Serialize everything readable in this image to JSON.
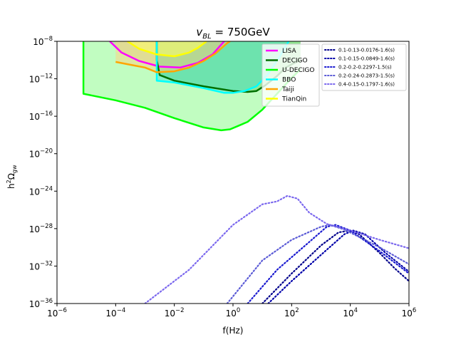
{
  "chart_data": {
    "type": "line",
    "title": "v_BL = 750GeV",
    "title_parts": {
      "symbol": "v",
      "subscript": "BL",
      "rest": " = 750GeV"
    },
    "xlabel": "f(Hz)",
    "ylabel": "h²Ω_gw",
    "ylabel_parts": {
      "h": "h",
      "h_sup": "2",
      "omega": "Ω",
      "omega_sub": "gw"
    },
    "x_scale": "log",
    "y_scale": "log",
    "xlim_log10": [
      -6,
      6
    ],
    "ylim_log10": [
      -36,
      -8
    ],
    "x_ticks": [
      {
        "base": "10",
        "exp": "−6",
        "v": -6
      },
      {
        "base": "10",
        "exp": "−4",
        "v": -4
      },
      {
        "base": "10",
        "exp": "−2",
        "v": -2
      },
      {
        "base": "10",
        "exp": "0",
        "v": 0
      },
      {
        "base": "10",
        "exp": "2",
        "v": 2
      },
      {
        "base": "10",
        "exp": "4",
        "v": 4
      },
      {
        "base": "10",
        "exp": "6",
        "v": 6
      }
    ],
    "y_ticks": [
      {
        "base": "10",
        "exp": "−8",
        "v": -8
      },
      {
        "base": "10",
        "exp": "−12",
        "v": -12
      },
      {
        "base": "10",
        "exp": "−16",
        "v": -16
      },
      {
        "base": "10",
        "exp": "−20",
        "v": -20
      },
      {
        "base": "10",
        "exp": "−24",
        "v": -24
      },
      {
        "base": "10",
        "exp": "−28",
        "v": -28
      },
      {
        "base": "10",
        "exp": "−32",
        "v": -32
      },
      {
        "base": "10",
        "exp": "−36",
        "v": -36
      }
    ],
    "sensitivity_curves": [
      {
        "name": "LISA",
        "color": "#ff00ff",
        "fill": "#ff8080",
        "fill_opacity": 0.45,
        "points": [
          [
            -4.2,
            -8
          ],
          [
            -3.8,
            -9.2
          ],
          [
            -3.2,
            -10.1
          ],
          [
            -2.5,
            -10.7
          ],
          [
            -1.8,
            -10.8
          ],
          [
            -1.2,
            -10.3
          ],
          [
            -0.7,
            -9.4
          ],
          [
            -0.3,
            -8
          ]
        ]
      },
      {
        "name": "DECIGO",
        "color": "#007000",
        "fill": "#008000",
        "fill_opacity": 0.45,
        "points": [
          [
            -2.6,
            -8
          ],
          [
            -2.6,
            -10
          ],
          [
            -2.5,
            -11.6
          ],
          [
            -2,
            -12.2
          ],
          [
            -1,
            -12.8
          ],
          [
            0,
            -13.3
          ],
          [
            0.5,
            -13.4
          ],
          [
            0.8,
            -13.3
          ],
          [
            1.1,
            -12.7
          ],
          [
            1.5,
            -11.7
          ],
          [
            1.8,
            -10.8
          ],
          [
            2.1,
            -10.3
          ],
          [
            2.3,
            -10
          ]
        ]
      },
      {
        "name": "U-DECIGO",
        "color": "#00ff00",
        "fill": "#98fb98",
        "fill_opacity": 0.6,
        "points": [
          [
            -5.1,
            -8
          ],
          [
            -5.1,
            -13.6
          ],
          [
            -4,
            -14.3
          ],
          [
            -3,
            -15.1
          ],
          [
            -2,
            -16.2
          ],
          [
            -1,
            -17.2
          ],
          [
            -0.4,
            -17.5
          ],
          [
            -0.1,
            -17.4
          ],
          [
            0.2,
            -17
          ],
          [
            0.5,
            -16.6
          ],
          [
            1,
            -15.3
          ],
          [
            1.5,
            -13.6
          ],
          [
            2,
            -11.9
          ],
          [
            2.3,
            -11
          ]
        ]
      },
      {
        "name": "BBO",
        "color": "#00ffff",
        "fill": "#40e0d0",
        "fill_opacity": 0.45,
        "points": [
          [
            -2.6,
            -8
          ],
          [
            -2.6,
            -12.2
          ],
          [
            -2,
            -12.4
          ],
          [
            -1,
            -13
          ],
          [
            -0.3,
            -13.5
          ],
          [
            0,
            -13.5
          ],
          [
            0.4,
            -13.3
          ],
          [
            0.8,
            -12.8
          ],
          [
            1.2,
            -11.5
          ],
          [
            1.6,
            -9.6
          ],
          [
            1.9,
            -8
          ]
        ]
      },
      {
        "name": "Taiji",
        "color": "#ffa500",
        "fill": "#ffd27f",
        "fill_opacity": 0.5,
        "points": [
          [
            -4,
            -10.2
          ],
          [
            -3.5,
            -10.5
          ],
          [
            -3,
            -10.8
          ],
          [
            -2.6,
            -11.3
          ],
          [
            -2,
            -11.2
          ],
          [
            -1.5,
            -10.8
          ],
          [
            -1,
            -10.1
          ],
          [
            -0.6,
            -9.3
          ],
          [
            -0.2,
            -8.2
          ],
          [
            -0.1,
            -8
          ]
        ]
      },
      {
        "name": "TianQin",
        "color": "#ffff00",
        "fill": "#ffff66",
        "fill_opacity": 0.55,
        "points": [
          [
            -3.6,
            -8
          ],
          [
            -3.2,
            -8.8
          ],
          [
            -2.6,
            -9.4
          ],
          [
            -2,
            -9.6
          ],
          [
            -1.5,
            -9.2
          ],
          [
            -1.2,
            -8.7
          ],
          [
            -0.9,
            -8
          ]
        ]
      }
    ],
    "signal_series": [
      {
        "name": "0.1-0.13-0.0176-1.6(s)",
        "color": "#00008b",
        "points": [
          [
            1,
            -36
          ],
          [
            2,
            -32.8
          ],
          [
            3,
            -29.8
          ],
          [
            3.6,
            -28.4
          ],
          [
            4,
            -28.2
          ],
          [
            4.3,
            -28.6
          ],
          [
            5,
            -30.6
          ],
          [
            5.5,
            -32.2
          ],
          [
            6,
            -33.6
          ]
        ]
      },
      {
        "name": "0.1-0.15-0.0849-1.6(s)",
        "color": "#0000aa",
        "points": [
          [
            1.2,
            -36
          ],
          [
            2,
            -33.6
          ],
          [
            3,
            -30.8
          ],
          [
            3.8,
            -28.6
          ],
          [
            4.1,
            -28.2
          ],
          [
            4.5,
            -28.6
          ],
          [
            5.2,
            -30.6
          ],
          [
            6,
            -32.6
          ]
        ]
      },
      {
        "name": "0.2-0.2-0.2297-1.5(s)",
        "color": "#1a1ad0",
        "points": [
          [
            0.5,
            -36
          ],
          [
            1.5,
            -32.4
          ],
          [
            2.5,
            -29.7
          ],
          [
            3.2,
            -27.8
          ],
          [
            3.5,
            -27.6
          ],
          [
            4,
            -28.2
          ],
          [
            5,
            -30.4
          ],
          [
            6,
            -32.8
          ]
        ]
      },
      {
        "name": "0.2-0.24-0.2873-1.5(s)",
        "color": "#5b5bd6",
        "points": [
          [
            -0.2,
            -36
          ],
          [
            1,
            -31.4
          ],
          [
            2,
            -29.2
          ],
          [
            3,
            -27.8
          ],
          [
            3.3,
            -27.6
          ],
          [
            3.8,
            -28.1
          ],
          [
            5,
            -30
          ],
          [
            6,
            -31.8
          ]
        ]
      },
      {
        "name": "0.4-0.15-0.1797-1.6(s)",
        "color": "#7b68ee",
        "points": [
          [
            -3,
            -36
          ],
          [
            -1.5,
            -32.4
          ],
          [
            0,
            -27.6
          ],
          [
            1,
            -25.4
          ],
          [
            1.5,
            -25.1
          ],
          [
            1.85,
            -24.5
          ],
          [
            2.2,
            -24.8
          ],
          [
            2.6,
            -26.3
          ],
          [
            3.2,
            -27.5
          ],
          [
            4,
            -28.2
          ],
          [
            5,
            -29.2
          ],
          [
            6,
            -30.1
          ]
        ]
      }
    ],
    "legend_left": [
      "LISA",
      "DECIGO",
      "U-DECIGO",
      "BBO",
      "Taiji",
      "TianQin"
    ],
    "legend_right": [
      "0.1-0.13-0.0176-1.6(s)",
      "0.1-0.15-0.0849-1.6(s)",
      "0.2-0.2-0.2297-1.5(s)",
      "0.2-0.24-0.2873-1.5(s)",
      "0.4-0.15-0.1797-1.6(s)"
    ],
    "legend_left_colors": [
      "#ff00ff",
      "#007000",
      "#00ff00",
      "#00ffff",
      "#ffa500",
      "#ffff00"
    ],
    "legend_right_colors": [
      "#00008b",
      "#0000aa",
      "#1a1ad0",
      "#5b5bd6",
      "#7b68ee"
    ],
    "legend_placement": "top-right"
  }
}
